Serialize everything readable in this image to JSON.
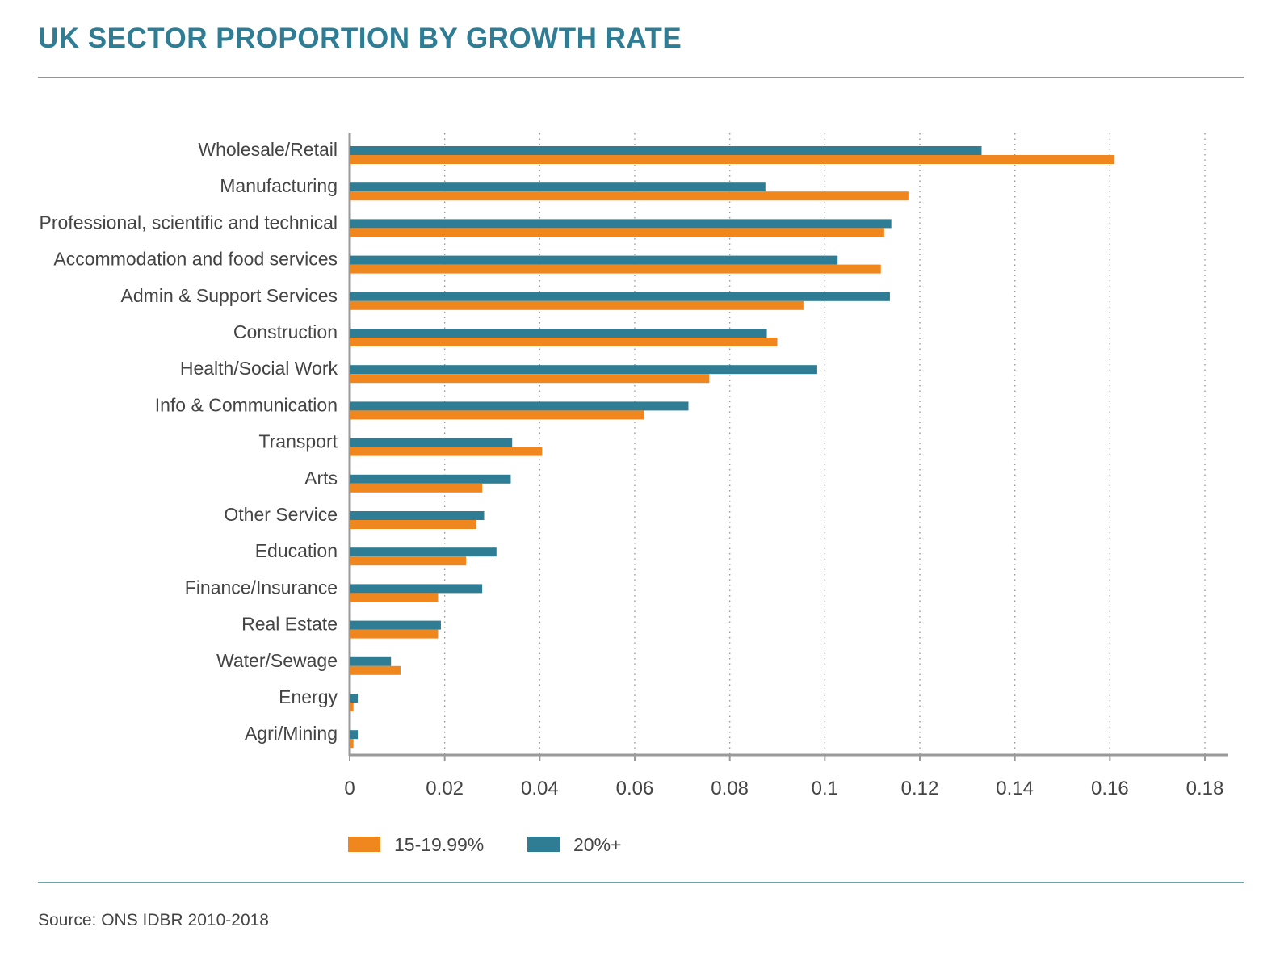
{
  "title": "UK SECTOR PROPORTION BY GROWTH RATE",
  "source": "Source: ONS IDBR 2010-2018",
  "colors": {
    "title": "#2e7d94",
    "series_orange": "#f0861e",
    "series_teal": "#2e7d94",
    "rule": "#6aa3b4"
  },
  "chart_data": {
    "type": "bar",
    "orientation": "horizontal",
    "title": "UK SECTOR PROPORTION BY GROWTH RATE",
    "categories": [
      "Wholesale/Retail",
      "Manufacturing",
      "Professional, scientific and technical",
      "Accommodation and food services",
      "Admin & Support Services",
      "Construction",
      "Health/Social Work",
      "Info & Communication",
      "Transport",
      "Arts",
      "Other Service",
      "Education",
      "Finance/Insurance",
      "Real Estate",
      "Water/Sewage",
      "Energy",
      "Agri/Mining"
    ],
    "series": [
      {
        "name": "20%+",
        "color": "#2e7d94",
        "values": [
          0.133,
          0.0875,
          0.114,
          0.1027,
          0.1137,
          0.0878,
          0.0984,
          0.0713,
          0.0342,
          0.0339,
          0.0283,
          0.0309,
          0.0279,
          0.0192,
          0.0087,
          0.0017,
          0.0017
        ]
      },
      {
        "name": "15-19.99%",
        "color": "#f0861e",
        "values": [
          0.161,
          0.1176,
          0.1125,
          0.1118,
          0.0955,
          0.09,
          0.0757,
          0.0619,
          0.0405,
          0.0279,
          0.0267,
          0.0245,
          0.0186,
          0.0186,
          0.0107,
          0.0008,
          0.0008
        ]
      }
    ],
    "xlim": [
      0,
      0.18
    ],
    "xticks": [
      "0",
      "0.02",
      "0.04",
      "0.06",
      "0.08",
      "0.1",
      "0.12",
      "0.14",
      "0.16",
      "0.18"
    ],
    "grid": "vertical dotted",
    "legend": {
      "position": "bottom-left",
      "entries": [
        {
          "label": "15-19.99%",
          "color": "#f0861e"
        },
        {
          "label": "20%+",
          "color": "#2e7d94"
        }
      ]
    }
  }
}
